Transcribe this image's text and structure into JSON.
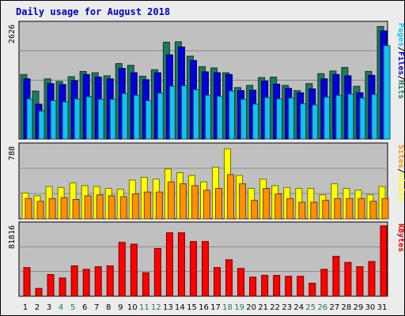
{
  "chart_data": {
    "type": "bar",
    "title": "Daily usage for August 2018",
    "categories": [
      "1",
      "2",
      "3",
      "4",
      "5",
      "6",
      "7",
      "8",
      "9",
      "10",
      "11",
      "12",
      "13",
      "14",
      "15",
      "16",
      "17",
      "18",
      "19",
      "20",
      "21",
      "22",
      "23",
      "24",
      "25",
      "26",
      "27",
      "28",
      "29",
      "30",
      "31"
    ],
    "weekend_days": [
      "4",
      "5",
      "11",
      "12",
      "18",
      "19",
      "25",
      "26"
    ],
    "panels": [
      {
        "id": "hits-files-pages",
        "y_max_label": "2626",
        "ylim": [
          0,
          2626
        ],
        "legend": [
          "Pages",
          "/",
          "Files",
          "/",
          "Hits"
        ],
        "series": [
          {
            "name": "Hits",
            "color": "#1e7a5c",
            "values": [
              1480,
              1100,
              1380,
              1320,
              1430,
              1550,
              1520,
              1450,
              1730,
              1690,
              1440,
              1590,
              2220,
              2230,
              1900,
              1660,
              1630,
              1520,
              1180,
              1230,
              1410,
              1420,
              1230,
              1110,
              1270,
              1500,
              1560,
              1640,
              1210,
              1550,
              2580
            ]
          },
          {
            "name": "Files",
            "color": "#0000d8",
            "values": [
              1380,
              800,
              1270,
              1250,
              1340,
              1480,
              1420,
              1380,
              1620,
              1520,
              1360,
              1520,
              1930,
              2110,
              1800,
              1540,
              1520,
              1480,
              1110,
              1120,
              1330,
              1260,
              1160,
              1060,
              1150,
              1380,
              1480,
              1450,
              1060,
              1460,
              2480
            ]
          },
          {
            "name": "Pages",
            "color": "#18c0f0",
            "values": [
              920,
              640,
              880,
              850,
              920,
              970,
              910,
              910,
              1040,
              1000,
              880,
              1050,
              1210,
              1220,
              1130,
              1000,
              980,
              1100,
              910,
              800,
              950,
              920,
              940,
              810,
              780,
              960,
              1000,
              1030,
              940,
              1020,
              2140
            ]
          }
        ]
      },
      {
        "id": "visits-sites",
        "y_max_label": "788",
        "ylim": [
          0,
          788
        ],
        "legend": [
          "Sites",
          "/",
          "Visits"
        ],
        "series": [
          {
            "name": "Visits",
            "color": "#ffff00",
            "values": [
              280,
              250,
              350,
              340,
              390,
              360,
              350,
              330,
              320,
              420,
              450,
              430,
              540,
              500,
              470,
              400,
              560,
              760,
              470,
              330,
              430,
              360,
              340,
              330,
              330,
              260,
              380,
              330,
              310,
              260,
              350
            ]
          },
          {
            "name": "Sites",
            "color": "#ff9000",
            "values": [
              220,
              190,
              220,
              230,
              210,
              250,
              260,
              250,
              240,
              270,
              290,
              290,
              400,
              380,
              360,
              310,
              330,
              480,
              380,
              200,
              330,
              270,
              220,
              180,
              180,
              200,
              220,
              220,
              220,
              190,
              220
            ]
          }
        ]
      },
      {
        "id": "kbytes",
        "y_max_label": "81816",
        "ylim": [
          0,
          81816
        ],
        "legend": [
          "KBytes"
        ],
        "series": [
          {
            "name": "KBytes",
            "color": "#ff0000",
            "values": [
              33000,
              9000,
              25000,
              21000,
              35000,
              31000,
              34000,
              35000,
              62000,
              60000,
              27000,
              55000,
              73000,
              73000,
              63000,
              63000,
              33000,
              42000,
              32000,
              22000,
              24000,
              24000,
              23000,
              23000,
              15000,
              31000,
              46000,
              39000,
              34000,
              40000,
              81000
            ]
          }
        ]
      }
    ]
  }
}
